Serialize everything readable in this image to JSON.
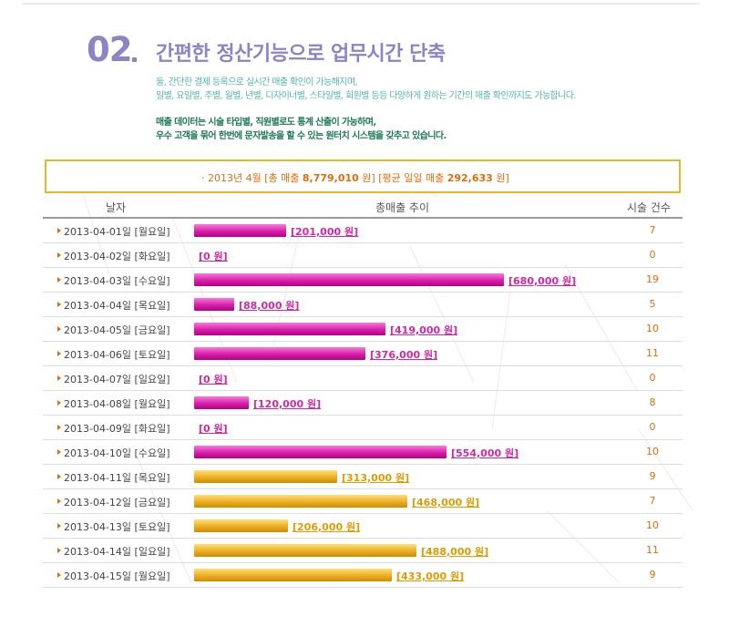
{
  "section": {
    "number": "02",
    "title": "간편한 정산기능으로 업무시간 단축",
    "desc_lines": [
      "둘, 간단한 결제 등록으로 실시간 매출 확인이 가능해지며,",
      "일별, 요일별, 주별, 월별, 년별, 디자이너별, 스타일별, 회원별 등등 다양하게  원하는 기간의 매출 확인까지도 가능합니다.",
      "매출 데이터는 시술 타입별, 직원별로도 통계 산출이 가능하며,",
      "우수 고객을 묶어 한번에 문자발송을 할 수 있는 원터치 시스템을 갖추고 있습니다."
    ]
  },
  "summary": {
    "prefix": "· 2013년 4월 [총 매출 ",
    "total": "8,779,010",
    "mid": " 원] [평균 일일 매출 ",
    "avg": "292,633",
    "suffix": " 원]"
  },
  "table": {
    "headers": [
      "날자",
      "총매출 추이",
      "시술 건수"
    ],
    "rows": [
      {
        "date": "2013-04-01일 [월요일]",
        "label": "[201,000 원]",
        "count": "7",
        "color": "pink"
      },
      {
        "date": "2013-04-02일 [화요일]",
        "label": "[0 원]",
        "count": "0",
        "color": "pink"
      },
      {
        "date": "2013-04-03일 [수요일]",
        "label": "[680,000 원]",
        "count": "19",
        "color": "pink"
      },
      {
        "date": "2013-04-04일 [목요일]",
        "label": "[88,000 원]",
        "count": "5",
        "color": "pink"
      },
      {
        "date": "2013-04-05일 [금요일]",
        "label": "[419,000 원]",
        "count": "10",
        "color": "pink"
      },
      {
        "date": "2013-04-06일 [토요일]",
        "label": "[376,000 원]",
        "count": "11",
        "color": "pink"
      },
      {
        "date": "2013-04-07일 [일요일]",
        "label": "[0 원]",
        "count": "0",
        "color": "pink"
      },
      {
        "date": "2013-04-08일 [월요일]",
        "label": "[120,000 원]",
        "count": "8",
        "color": "pink"
      },
      {
        "date": "2013-04-09일 [화요일]",
        "label": "[0 원]",
        "count": "0",
        "color": "pink"
      },
      {
        "date": "2013-04-10일 [수요일]",
        "label": "[554,000 원]",
        "count": "10",
        "color": "pink"
      },
      {
        "date": "2013-04-11일 [목요일]",
        "label": "[313,000 원]",
        "count": "9",
        "color": "gold"
      },
      {
        "date": "2013-04-12일 [금요일]",
        "label": "[468,000 원]",
        "count": "7",
        "color": "gold"
      },
      {
        "date": "2013-04-13일 [토요일]",
        "label": "[206,000 원]",
        "count": "10",
        "color": "gold"
      },
      {
        "date": "2013-04-14일 [일요일]",
        "label": "[488,000 원]",
        "count": "11",
        "color": "gold"
      },
      {
        "date": "2013-04-15일 [월요일]",
        "label": "[433,000 원]",
        "count": "9",
        "color": "gold"
      }
    ]
  },
  "chart_data": {
    "type": "bar",
    "categories": [
      "2013-04-01",
      "2013-04-02",
      "2013-04-03",
      "2013-04-04",
      "2013-04-05",
      "2013-04-06",
      "2013-04-07",
      "2013-04-08",
      "2013-04-09",
      "2013-04-10",
      "2013-04-11",
      "2013-04-12",
      "2013-04-13",
      "2013-04-14",
      "2013-04-15"
    ],
    "values": [
      201000,
      0,
      680000,
      88000,
      419000,
      376000,
      0,
      120000,
      0,
      554000,
      313000,
      468000,
      206000,
      488000,
      433000
    ],
    "ylabel": "총매출 추이",
    "colors": {
      "past": "#d81fa9",
      "recent": "#ebae24"
    }
  }
}
